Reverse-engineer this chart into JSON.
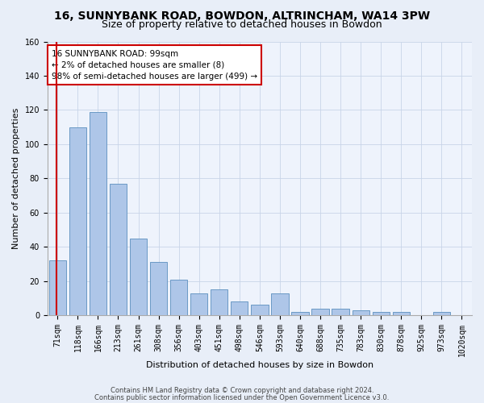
{
  "title1": "16, SUNNYBANK ROAD, BOWDON, ALTRINCHAM, WA14 3PW",
  "title2": "Size of property relative to detached houses in Bowdon",
  "xlabel": "Distribution of detached houses by size in Bowdon",
  "ylabel": "Number of detached properties",
  "categories": [
    "71sqm",
    "118sqm",
    "166sqm",
    "213sqm",
    "261sqm",
    "308sqm",
    "356sqm",
    "403sqm",
    "451sqm",
    "498sqm",
    "546sqm",
    "593sqm",
    "640sqm",
    "688sqm",
    "735sqm",
    "783sqm",
    "830sqm",
    "878sqm",
    "925sqm",
    "973sqm",
    "1020sqm"
  ],
  "values": [
    32,
    110,
    119,
    77,
    45,
    31,
    21,
    13,
    15,
    8,
    6,
    13,
    2,
    4,
    4,
    3,
    2,
    2,
    0,
    2,
    0
  ],
  "bar_color": "#aec6e8",
  "bar_edge_color": "#5b8fbe",
  "annotation_text": "16 SUNNYBANK ROAD: 99sqm\n← 2% of detached houses are smaller (8)\n98% of semi-detached houses are larger (499) →",
  "annotation_box_color": "#ffffff",
  "annotation_box_edge_color": "#cc0000",
  "vline_color": "#cc0000",
  "ylim": [
    0,
    160
  ],
  "yticks": [
    0,
    20,
    40,
    60,
    80,
    100,
    120,
    140,
    160
  ],
  "footer1": "Contains HM Land Registry data © Crown copyright and database right 2024.",
  "footer2": "Contains public sector information licensed under the Open Government Licence v3.0.",
  "bg_color": "#e8eef8",
  "plot_bg_color": "#eef3fc",
  "grid_color": "#c8d4e8",
  "title1_fontsize": 10,
  "title2_fontsize": 9,
  "tick_fontsize": 7,
  "ylabel_fontsize": 8,
  "xlabel_fontsize": 8,
  "footer_fontsize": 6
}
